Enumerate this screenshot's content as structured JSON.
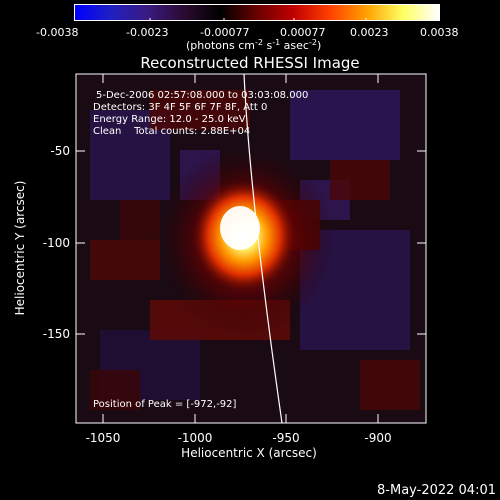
{
  "colorbar": {
    "ticks": [
      "-0.0038",
      "-0.0023",
      "-0.00077",
      "0.00077",
      "0.0023",
      "0.0038"
    ],
    "unit_main": "(photons cm",
    "unit_exp1": "-2",
    "unit_mid": " s",
    "unit_exp2": "-1",
    "unit_end": " asec",
    "unit_exp3": "-2",
    "unit_close": ")",
    "colors": [
      "#0000ff",
      "#2020c0",
      "#3a1a80",
      "#2a0a30",
      "#000000",
      "#6a0000",
      "#c00000",
      "#ff4000",
      "#ffa000",
      "#ffff60",
      "#ffffff"
    ]
  },
  "title": "Reconstructed RHESSI Image",
  "info": {
    "time": "5-Dec-2006 02:57:08.000 to 03:03:08.000",
    "detectors": "Detectors: 3F 4F 5F 6F 7F 8F, Att 0",
    "energy": "Energy Range: 12.0 - 25.0 keV",
    "clean": "Clean    Total counts: 2.88E+04",
    "peak": "Position of Peak = [-972,-92]"
  },
  "axes": {
    "xlabel": "Heliocentric X (arcsec)",
    "ylabel": "Heliocentric Y (arcsec)",
    "xticks": [
      "-1050",
      "-1000",
      "-950",
      "-900"
    ],
    "yticks": [
      "-50",
      "-100",
      "-150"
    ]
  },
  "footer": {
    "date": "8-May-2022 04:01"
  }
}
